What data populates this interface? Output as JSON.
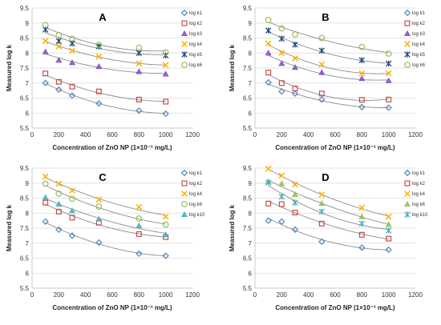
{
  "colors": {
    "log k1": "#4f81bd",
    "log k2": "#c0504d",
    "log k3": "#7f4fbf",
    "log k4": "#ffb000",
    "log k5": "#1f497d",
    "log k6": "#9bbb59",
    "log k10": "#4bacc6",
    "fit": "#8c8c8c",
    "grid": "#d9d9d9",
    "axis": "#bfbfbf"
  },
  "chart_data": [
    {
      "panel": "A",
      "type": "scatter",
      "xlabel": "Concentration of ZnO NP (1×10⁻³ mg/L)",
      "ylabel": "Measured log k",
      "xlim": [
        0,
        1200
      ],
      "ylim": [
        5.5,
        9.5
      ],
      "xticks": [
        0,
        200,
        400,
        600,
        800,
        1000,
        1200
      ],
      "yticks": [
        5.5,
        6,
        6.5,
        7,
        7.5,
        8,
        8.5,
        9,
        9.5
      ],
      "grid": true,
      "legend": "right",
      "trendlines": true,
      "series": [
        {
          "name": "log k1",
          "marker": "diamond",
          "x": [
            100,
            200,
            300,
            500,
            800,
            1000
          ],
          "y": [
            7.0,
            6.78,
            6.58,
            6.32,
            6.08,
            5.98
          ]
        },
        {
          "name": "log k2",
          "marker": "square",
          "x": [
            100,
            200,
            300,
            500,
            800,
            1000
          ],
          "y": [
            7.32,
            7.04,
            6.88,
            6.72,
            6.45,
            6.38
          ]
        },
        {
          "name": "log k3",
          "marker": "triangle",
          "x": [
            100,
            200,
            300,
            500,
            800,
            1000
          ],
          "y": [
            8.04,
            7.76,
            7.68,
            7.55,
            7.38,
            7.3
          ]
        },
        {
          "name": "log k4",
          "marker": "x",
          "x": [
            100,
            200,
            300,
            500,
            800,
            1000
          ],
          "y": [
            8.4,
            8.22,
            8.08,
            7.88,
            7.65,
            7.6
          ]
        },
        {
          "name": "log k5",
          "marker": "star",
          "x": [
            100,
            200,
            300,
            500,
            800,
            1000
          ],
          "y": [
            8.78,
            8.4,
            8.32,
            8.22,
            8.0,
            7.92
          ]
        },
        {
          "name": "log k6",
          "marker": "circle",
          "x": [
            100,
            200,
            300,
            500,
            800,
            1000
          ],
          "y": [
            8.93,
            8.6,
            8.48,
            8.27,
            8.18,
            8.02
          ]
        }
      ]
    },
    {
      "panel": "B",
      "type": "scatter",
      "xlabel": "Concentration of ZnO NP (1×10⁻³ mg/L)",
      "ylabel": "Measured log k",
      "xlim": [
        0,
        1200
      ],
      "ylim": [
        5.5,
        9.5
      ],
      "xticks": [
        0,
        200,
        400,
        600,
        800,
        1000,
        1200
      ],
      "yticks": [
        5.5,
        6,
        6.5,
        7,
        7.5,
        8,
        8.5,
        9,
        9.5
      ],
      "grid": true,
      "legend": "right",
      "trendlines": true,
      "series": [
        {
          "name": "log k1",
          "marker": "diamond",
          "x": [
            100,
            200,
            300,
            500,
            800,
            1000
          ],
          "y": [
            7.02,
            6.72,
            6.65,
            6.45,
            6.2,
            6.18
          ]
        },
        {
          "name": "log k2",
          "marker": "square",
          "x": [
            100,
            200,
            300,
            500,
            800,
            1000
          ],
          "y": [
            7.35,
            7.0,
            6.82,
            6.65,
            6.44,
            6.45
          ]
        },
        {
          "name": "log k3",
          "marker": "triangle",
          "x": [
            100,
            200,
            300,
            500,
            800,
            1000
          ],
          "y": [
            8.0,
            7.65,
            7.52,
            7.35,
            7.15,
            7.08
          ]
        },
        {
          "name": "log k4",
          "marker": "x",
          "x": [
            100,
            200,
            300,
            500,
            800,
            1000
          ],
          "y": [
            8.32,
            8.0,
            7.82,
            7.62,
            7.32,
            7.32
          ]
        },
        {
          "name": "log k5",
          "marker": "star",
          "x": [
            100,
            200,
            300,
            500,
            800,
            1000
          ],
          "y": [
            8.75,
            8.48,
            8.28,
            8.08,
            7.76,
            7.65
          ]
        },
        {
          "name": "log k6",
          "marker": "circle",
          "x": [
            100,
            200,
            300,
            500,
            800,
            1000
          ],
          "y": [
            9.1,
            8.82,
            8.62,
            8.5,
            8.2,
            7.98
          ]
        }
      ]
    },
    {
      "panel": "C",
      "type": "scatter",
      "xlabel": "Concentration of ZnO NP (1×10⁻³ mg/L)",
      "ylabel": "Measured log k",
      "xlim": [
        0,
        1200
      ],
      "ylim": [
        5.5,
        9.5
      ],
      "xticks": [
        0,
        200,
        400,
        600,
        800,
        1000,
        1200
      ],
      "yticks": [
        5.5,
        6,
        6.5,
        7,
        7.5,
        8,
        8.5,
        9,
        9.5
      ],
      "grid": true,
      "legend": "right",
      "trendlines": true,
      "series": [
        {
          "name": "log k1",
          "marker": "diamond",
          "x": [
            100,
            200,
            300,
            500,
            800,
            1000
          ],
          "y": [
            7.72,
            7.45,
            7.25,
            7.02,
            6.65,
            6.58
          ]
        },
        {
          "name": "log k2",
          "marker": "square",
          "x": [
            100,
            200,
            300,
            500,
            800,
            1000
          ],
          "y": [
            8.35,
            8.05,
            7.85,
            7.68,
            7.3,
            7.2
          ]
        },
        {
          "name": "log k4",
          "marker": "x",
          "x": [
            100,
            200,
            300,
            500,
            800,
            1000
          ],
          "y": [
            9.22,
            8.98,
            8.75,
            8.45,
            8.2,
            7.88
          ]
        },
        {
          "name": "log k6",
          "marker": "circle",
          "x": [
            100,
            200,
            300,
            500,
            800,
            1000
          ],
          "y": [
            8.98,
            8.65,
            8.48,
            8.22,
            7.82,
            7.62
          ]
        },
        {
          "name": "log k10",
          "marker": "triangle",
          "x": [
            100,
            200,
            300,
            500,
            800,
            1000
          ],
          "y": [
            8.52,
            8.3,
            8.08,
            7.8,
            7.58,
            7.28
          ]
        }
      ]
    },
    {
      "panel": "D",
      "type": "scatter",
      "xlabel": "Concentration of ZnO NP (1×10⁻³ mg/L)",
      "ylabel": "Measured log k",
      "xlim": [
        0,
        1200
      ],
      "ylim": [
        5.5,
        9.5
      ],
      "xticks": [
        0,
        200,
        400,
        600,
        800,
        1000,
        1200
      ],
      "yticks": [
        5.5,
        6,
        6.5,
        7,
        7.5,
        8,
        8.5,
        9,
        9.5
      ],
      "grid": true,
      "legend": "right",
      "trendlines": true,
      "series": [
        {
          "name": "log k1",
          "marker": "diamond",
          "x": [
            100,
            200,
            300,
            500,
            800,
            1000
          ],
          "y": [
            7.75,
            7.72,
            7.45,
            7.05,
            6.85,
            6.78
          ]
        },
        {
          "name": "log k2",
          "marker": "square",
          "x": [
            100,
            200,
            300,
            500,
            800,
            1000
          ],
          "y": [
            8.32,
            8.3,
            8.02,
            7.65,
            7.28,
            7.15
          ]
        },
        {
          "name": "log k4",
          "marker": "x",
          "x": [
            100,
            200,
            300,
            500,
            800,
            1000
          ],
          "y": [
            9.48,
            9.25,
            8.95,
            8.62,
            8.18,
            7.88
          ]
        },
        {
          "name": "log k6",
          "marker": "triangle",
          "x": [
            100,
            200,
            300,
            500,
            800,
            1000
          ],
          "y": [
            9.05,
            8.98,
            8.62,
            8.32,
            7.88,
            7.62
          ]
        },
        {
          "name": "log k10",
          "marker": "star",
          "x": [
            100,
            200,
            300,
            500,
            800,
            1000
          ],
          "y": [
            9.02,
            8.55,
            8.35,
            8.05,
            7.65,
            7.42
          ]
        }
      ]
    }
  ]
}
